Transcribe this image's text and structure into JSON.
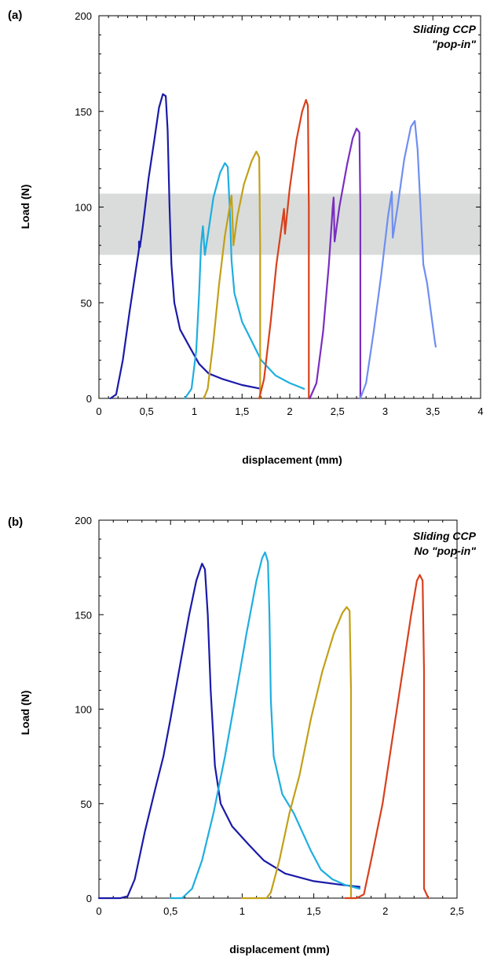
{
  "chart_data": [
    {
      "type": "line",
      "panel_label": "(a)",
      "annotation": [
        "Sliding CCP",
        "\"pop-in\""
      ],
      "xlabel": "displacement (mm)",
      "ylabel": "Load (N)",
      "xlim": [
        0,
        4
      ],
      "ylim": [
        0,
        200
      ],
      "xticks": [
        0,
        0.5,
        1,
        1.5,
        2,
        2.5,
        3,
        3.5,
        4
      ],
      "xtick_labels": [
        "0",
        "0,5",
        "1",
        "1,5",
        "2",
        "2,5",
        "3",
        "3,5",
        "4"
      ],
      "yticks": [
        0,
        50,
        100,
        150,
        200
      ],
      "ytick_labels": [
        "0",
        "50",
        "100",
        "150",
        "200"
      ],
      "grid": false,
      "shaded_band": {
        "y": [
          75,
          107
        ],
        "color": "#d9dcdb"
      },
      "series": [
        {
          "color": "#1a1aa8",
          "points": [
            [
              0.12,
              0
            ],
            [
              0.18,
              2
            ],
            [
              0.25,
              20
            ],
            [
              0.32,
              45
            ],
            [
              0.38,
              65
            ],
            [
              0.42,
              78
            ],
            [
              0.42,
              82
            ],
            [
              0.43,
              79
            ],
            [
              0.46,
              90
            ],
            [
              0.52,
              115
            ],
            [
              0.58,
              135
            ],
            [
              0.63,
              152
            ],
            [
              0.67,
              159
            ],
            [
              0.7,
              158
            ],
            [
              0.72,
              140
            ],
            [
              0.74,
              100
            ],
            [
              0.76,
              70
            ],
            [
              0.79,
              50
            ],
            [
              0.85,
              36
            ],
            [
              0.95,
              27
            ],
            [
              1.05,
              18
            ],
            [
              1.15,
              13
            ],
            [
              1.3,
              10
            ],
            [
              1.5,
              7
            ],
            [
              1.7,
              5
            ]
          ]
        },
        {
          "color": "#1eaee0",
          "points": [
            [
              0.9,
              0
            ],
            [
              0.97,
              5
            ],
            [
              1.02,
              25
            ],
            [
              1.05,
              55
            ],
            [
              1.07,
              80
            ],
            [
              1.09,
              90
            ],
            [
              1.11,
              75
            ],
            [
              1.15,
              88
            ],
            [
              1.2,
              105
            ],
            [
              1.27,
              118
            ],
            [
              1.32,
              123
            ],
            [
              1.35,
              121
            ],
            [
              1.37,
              100
            ],
            [
              1.39,
              72
            ],
            [
              1.42,
              55
            ],
            [
              1.5,
              40
            ],
            [
              1.6,
              30
            ],
            [
              1.7,
              20
            ],
            [
              1.85,
              12
            ],
            [
              2.0,
              8
            ],
            [
              2.15,
              5
            ]
          ]
        },
        {
          "color": "#c2a018",
          "points": [
            [
              1.1,
              0
            ],
            [
              1.14,
              5
            ],
            [
              1.2,
              30
            ],
            [
              1.26,
              60
            ],
            [
              1.32,
              85
            ],
            [
              1.37,
              100
            ],
            [
              1.39,
              106
            ],
            [
              1.41,
              80
            ],
            [
              1.45,
              95
            ],
            [
              1.52,
              112
            ],
            [
              1.6,
              124
            ],
            [
              1.65,
              129
            ],
            [
              1.68,
              126
            ],
            [
              1.69,
              80
            ],
            [
              1.69,
              5
            ],
            [
              1.69,
              0
            ]
          ]
        },
        {
          "color": "#d8401c",
          "points": [
            [
              1.68,
              0
            ],
            [
              1.73,
              10
            ],
            [
              1.8,
              40
            ],
            [
              1.86,
              70
            ],
            [
              1.92,
              92
            ],
            [
              1.94,
              99
            ],
            [
              1.95,
              86
            ],
            [
              2.0,
              110
            ],
            [
              2.07,
              135
            ],
            [
              2.13,
              150
            ],
            [
              2.17,
              156
            ],
            [
              2.19,
              153
            ],
            [
              2.2,
              100
            ],
            [
              2.2,
              5
            ],
            [
              2.2,
              0
            ]
          ]
        },
        {
          "color": "#7a2ec0",
          "points": [
            [
              2.21,
              0
            ],
            [
              2.28,
              8
            ],
            [
              2.35,
              35
            ],
            [
              2.41,
              70
            ],
            [
              2.45,
              100
            ],
            [
              2.46,
              105
            ],
            [
              2.47,
              82
            ],
            [
              2.52,
              100
            ],
            [
              2.6,
              122
            ],
            [
              2.66,
              136
            ],
            [
              2.7,
              141
            ],
            [
              2.73,
              139
            ],
            [
              2.74,
              100
            ],
            [
              2.74,
              5
            ],
            [
              2.74,
              0
            ]
          ]
        },
        {
          "color": "#6f8ef0",
          "points": [
            [
              2.74,
              0
            ],
            [
              2.8,
              8
            ],
            [
              2.88,
              35
            ],
            [
              2.96,
              65
            ],
            [
              3.03,
              95
            ],
            [
              3.07,
              108
            ],
            [
              3.08,
              84
            ],
            [
              3.13,
              100
            ],
            [
              3.2,
              125
            ],
            [
              3.27,
              142
            ],
            [
              3.31,
              145
            ],
            [
              3.34,
              130
            ],
            [
              3.37,
              100
            ],
            [
              3.4,
              70
            ],
            [
              3.44,
              60
            ],
            [
              3.48,
              45
            ],
            [
              3.52,
              30
            ],
            [
              3.53,
              27
            ]
          ]
        }
      ]
    },
    {
      "type": "line",
      "panel_label": "(b)",
      "annotation": [
        "Sliding CCP",
        "No \"pop-in\""
      ],
      "xlabel": "displacement (mm)",
      "ylabel": "Load (N)",
      "xlim": [
        0,
        2.5
      ],
      "ylim": [
        0,
        200
      ],
      "xticks": [
        0,
        0.5,
        1,
        1.5,
        2,
        2.5
      ],
      "xtick_labels": [
        "0",
        "0,5",
        "1",
        "1,5",
        "2",
        "2,5"
      ],
      "yticks": [
        0,
        50,
        100,
        150,
        200
      ],
      "ytick_labels": [
        "0",
        "50",
        "100",
        "150",
        "200"
      ],
      "grid": false,
      "series": [
        {
          "color": "#1a1aa8",
          "points": [
            [
              0,
              0
            ],
            [
              0.15,
              0
            ],
            [
              0.2,
              1
            ],
            [
              0.25,
              10
            ],
            [
              0.32,
              35
            ],
            [
              0.4,
              60
            ],
            [
              0.45,
              75
            ],
            [
              0.5,
              95
            ],
            [
              0.57,
              125
            ],
            [
              0.63,
              150
            ],
            [
              0.68,
              168
            ],
            [
              0.72,
              177
            ],
            [
              0.74,
              174
            ],
            [
              0.76,
              150
            ],
            [
              0.78,
              110
            ],
            [
              0.81,
              70
            ],
            [
              0.85,
              50
            ],
            [
              0.93,
              38
            ],
            [
              1.05,
              28
            ],
            [
              1.15,
              20
            ],
            [
              1.3,
              13
            ],
            [
              1.5,
              9
            ],
            [
              1.7,
              7
            ],
            [
              1.82,
              6
            ]
          ]
        },
        {
          "color": "#1eaee0",
          "points": [
            [
              0.5,
              0
            ],
            [
              0.58,
              0
            ],
            [
              0.65,
              5
            ],
            [
              0.72,
              20
            ],
            [
              0.8,
              45
            ],
            [
              0.88,
              75
            ],
            [
              0.95,
              105
            ],
            [
              1.03,
              140
            ],
            [
              1.1,
              168
            ],
            [
              1.14,
              180
            ],
            [
              1.16,
              183
            ],
            [
              1.18,
              178
            ],
            [
              1.19,
              150
            ],
            [
              1.2,
              105
            ],
            [
              1.22,
              75
            ],
            [
              1.28,
              55
            ],
            [
              1.36,
              45
            ],
            [
              1.42,
              35
            ],
            [
              1.48,
              25
            ],
            [
              1.55,
              15
            ],
            [
              1.63,
              10
            ],
            [
              1.72,
              7
            ],
            [
              1.82,
              5
            ]
          ]
        },
        {
          "color": "#c2a018",
          "points": [
            [
              1.0,
              0
            ],
            [
              1.17,
              0
            ],
            [
              1.2,
              3
            ],
            [
              1.26,
              20
            ],
            [
              1.33,
              45
            ],
            [
              1.4,
              65
            ],
            [
              1.48,
              95
            ],
            [
              1.56,
              120
            ],
            [
              1.64,
              140
            ],
            [
              1.7,
              151
            ],
            [
              1.73,
              154
            ],
            [
              1.75,
              152
            ],
            [
              1.76,
              110
            ],
            [
              1.76,
              20
            ],
            [
              1.76,
              0
            ]
          ]
        },
        {
          "color": "#d8401c",
          "points": [
            [
              1.76,
              0
            ],
            [
              1.72,
              0
            ],
            [
              1.8,
              0
            ],
            [
              1.85,
              2
            ],
            [
              1.9,
              20
            ],
            [
              1.98,
              50
            ],
            [
              2.05,
              85
            ],
            [
              2.12,
              120
            ],
            [
              2.18,
              150
            ],
            [
              2.22,
              168
            ],
            [
              2.24,
              171
            ],
            [
              2.26,
              168
            ],
            [
              2.27,
              120
            ],
            [
              2.27,
              5
            ],
            [
              2.3,
              0
            ]
          ]
        }
      ]
    }
  ]
}
